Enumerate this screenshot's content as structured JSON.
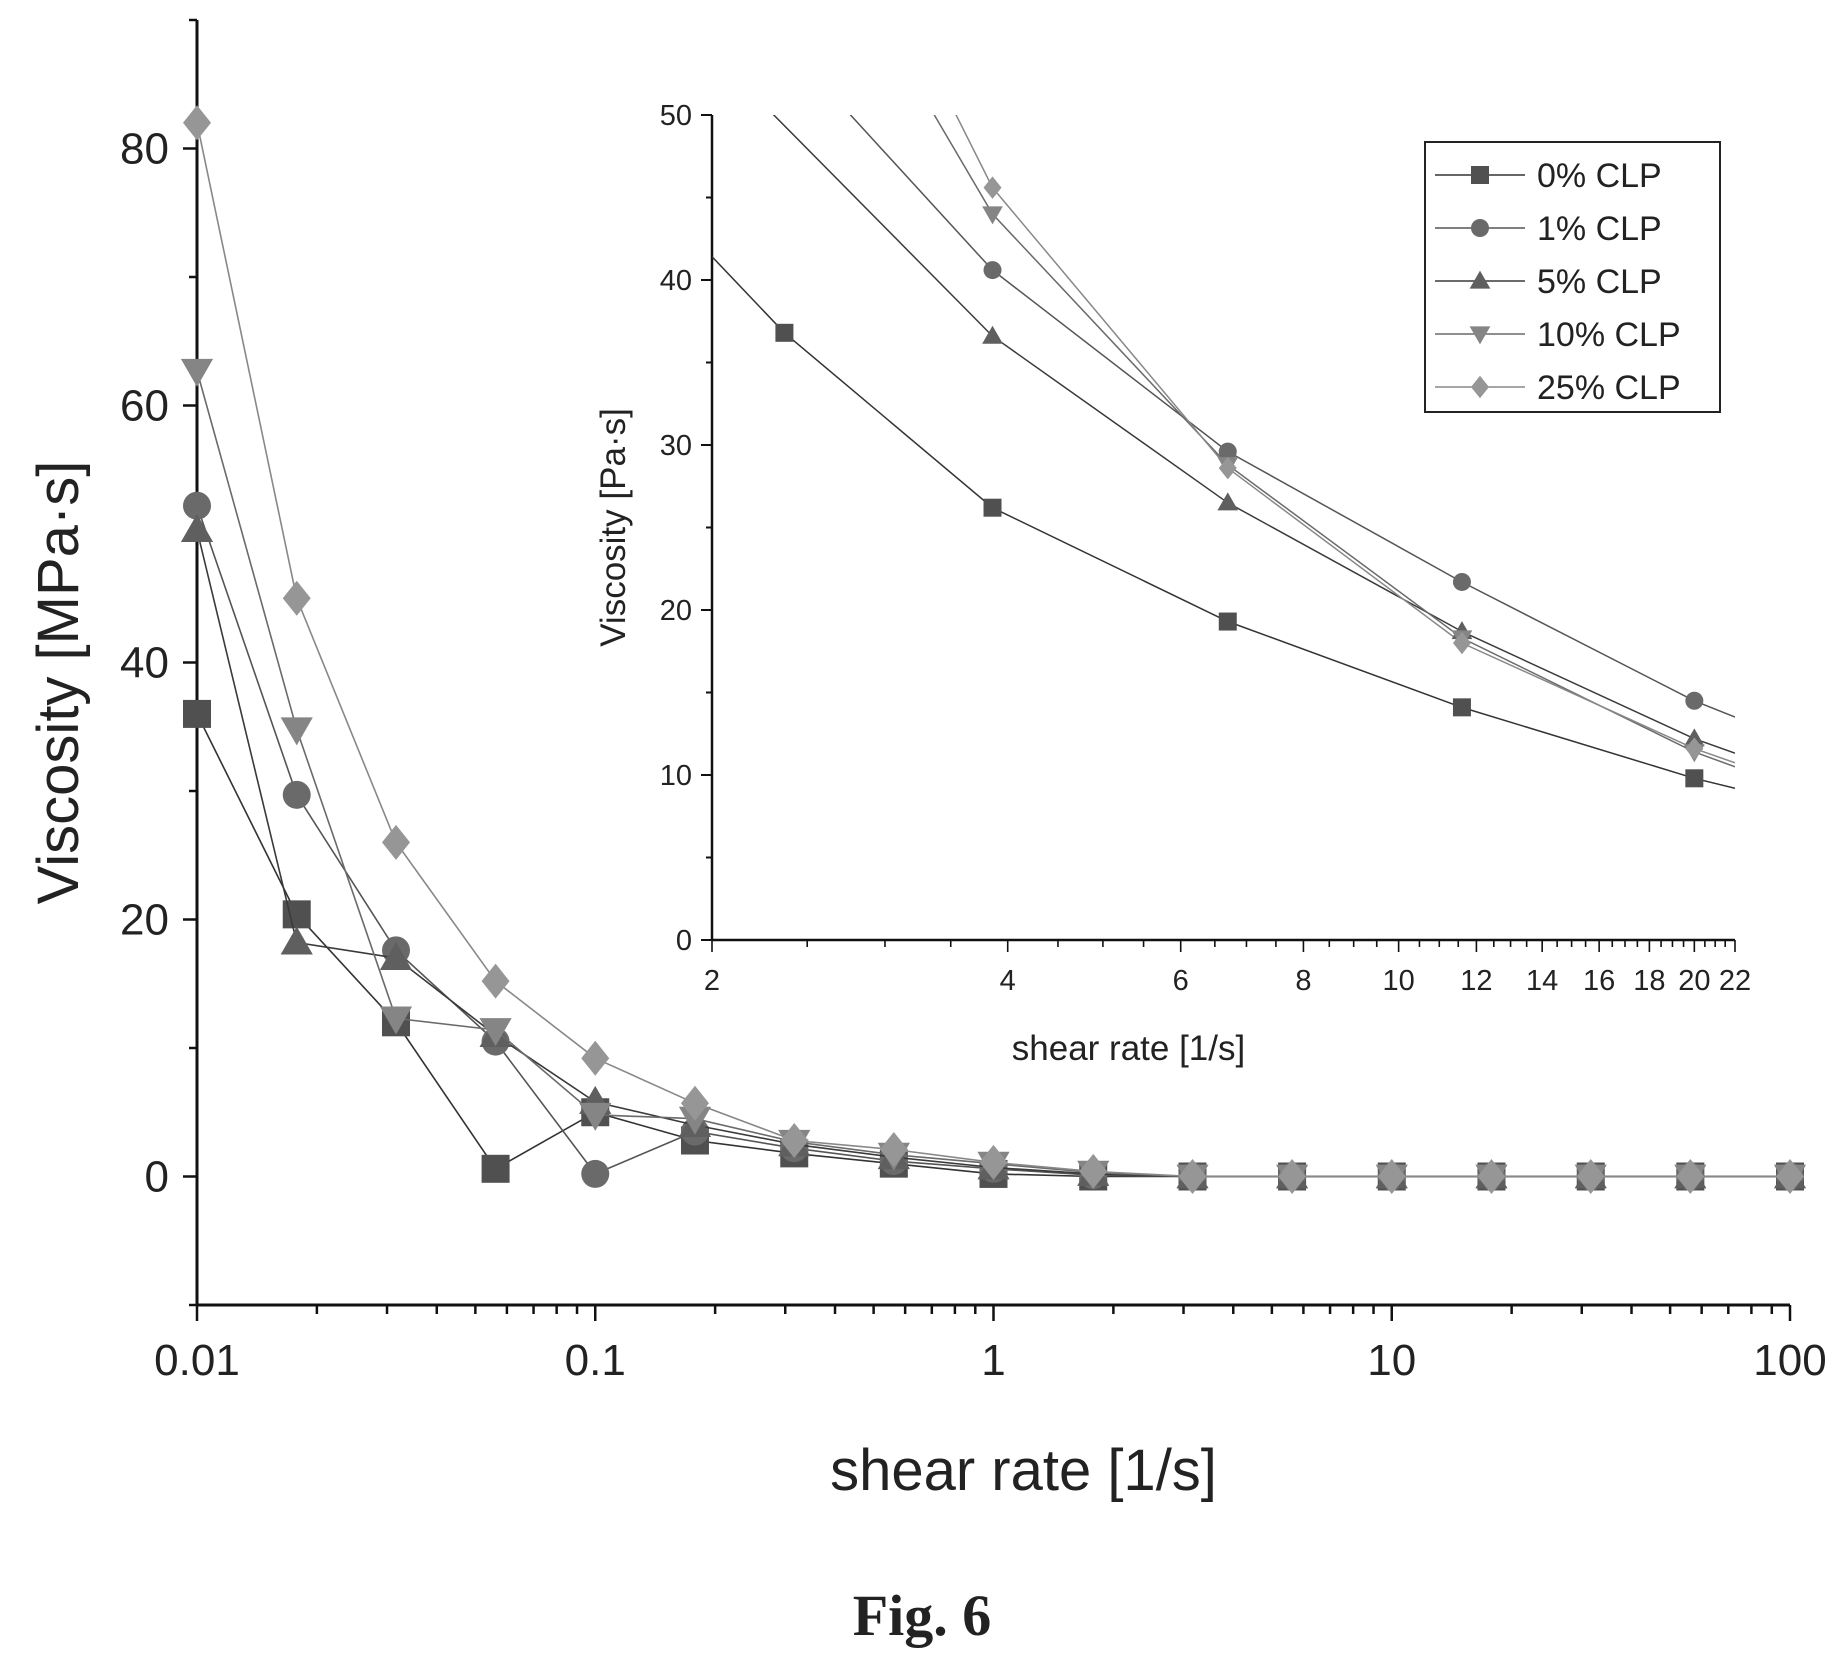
{
  "figure_label": "Fig. 6",
  "chart_data": [
    {
      "id": "main",
      "type": "line",
      "xlabel": "shear rate [1/s]",
      "ylabel": "Viscosity [MPa·s]",
      "x_scale": "log",
      "xlim": [
        0.01,
        100
      ],
      "ylim": [
        -10,
        90
      ],
      "x_ticks": [
        0.01,
        0.1,
        1,
        10,
        100
      ],
      "x_tick_labels": [
        "0.01",
        "0.1",
        "1",
        "10",
        "100"
      ],
      "y_ticks": [
        0,
        20,
        40,
        60,
        80
      ],
      "y_tick_labels": [
        "0",
        "20",
        "40",
        "60",
        "80"
      ],
      "x": [
        0.01,
        0.0178,
        0.0316,
        0.0562,
        0.1,
        0.178,
        0.316,
        0.562,
        1,
        1.78,
        3.16,
        5.62,
        10,
        17.8,
        31.6,
        56.2,
        100
      ],
      "series": [
        {
          "name": "0% CLP",
          "marker": "square",
          "values": [
            36,
            20.4,
            12,
            0.6,
            5,
            2.8,
            1.8,
            1,
            0.2,
            0,
            0,
            0,
            0,
            0,
            0,
            0,
            0
          ]
        },
        {
          "name": "1% CLP",
          "marker": "circle",
          "values": [
            52.2,
            29.7,
            17.6,
            10.5,
            0.2,
            3.5,
            2.2,
            1.2,
            0.6,
            0.1,
            0,
            0,
            0,
            0,
            0,
            0,
            0
          ]
        },
        {
          "name": "5% CLP",
          "marker": "triangle-up",
          "values": [
            50.3,
            18.2,
            17,
            11,
            5.8,
            4,
            2.5,
            1.5,
            0.7,
            0.2,
            0,
            0,
            0,
            0,
            0,
            0,
            0
          ]
        },
        {
          "name": "10% CLP",
          "marker": "triangle-down",
          "values": [
            62.7,
            34.8,
            12.3,
            11.4,
            4.8,
            4.5,
            2.7,
            1.7,
            1,
            0.3,
            0,
            0,
            0,
            0,
            0,
            0,
            0
          ]
        },
        {
          "name": "25% CLP",
          "marker": "diamond",
          "values": [
            82,
            45,
            26,
            15.2,
            9.2,
            5.7,
            2.8,
            2.1,
            1.1,
            0.4,
            0,
            0,
            0,
            0,
            0,
            0,
            0
          ]
        }
      ]
    },
    {
      "id": "inset",
      "type": "line",
      "xlabel": "shear rate [1/s]",
      "ylabel": "Viscosity [Pa·s]",
      "x_scale": "log",
      "xlim": [
        2,
        22
      ],
      "ylim": [
        0,
        50
      ],
      "x_ticks": [
        2,
        4,
        6,
        8,
        10,
        12,
        14,
        16,
        18,
        20,
        22
      ],
      "x_tick_labels": [
        "2",
        "4",
        "6",
        "8",
        "10",
        "12",
        "14",
        "16",
        "18",
        "20",
        "22"
      ],
      "y_ticks": [
        0,
        10,
        20,
        30,
        40,
        50
      ],
      "y_tick_labels": [
        "0",
        "10",
        "20",
        "30",
        "40",
        "50"
      ],
      "legend": "top-right",
      "series": [
        {
          "name": "0% CLP",
          "marker": "square",
          "x": [
            2.37,
            3.86,
            6.7,
            11.6,
            20
          ],
          "values": [
            36.8,
            26.2,
            19.3,
            14.1,
            9.8
          ]
        },
        {
          "name": "1% CLP",
          "marker": "circle",
          "x": [
            3.86,
            6.7,
            11.6,
            20
          ],
          "values": [
            40.6,
            29.6,
            21.7,
            14.5
          ]
        },
        {
          "name": "5% CLP",
          "marker": "triangle-up",
          "x": [
            3.86,
            6.7,
            11.6,
            20
          ],
          "values": [
            36.6,
            26.5,
            18.7,
            12.2
          ]
        },
        {
          "name": "10% CLP",
          "marker": "triangle-down",
          "x": [
            3.86,
            6.7,
            11.6,
            20
          ],
          "values": [
            44,
            28.8,
            18.3,
            11.4
          ]
        },
        {
          "name": "25% CLP",
          "marker": "diamond",
          "x": [
            3.86,
            6.7,
            11.6,
            20
          ],
          "values": [
            45.6,
            28.6,
            18,
            11.6
          ]
        }
      ]
    }
  ]
}
